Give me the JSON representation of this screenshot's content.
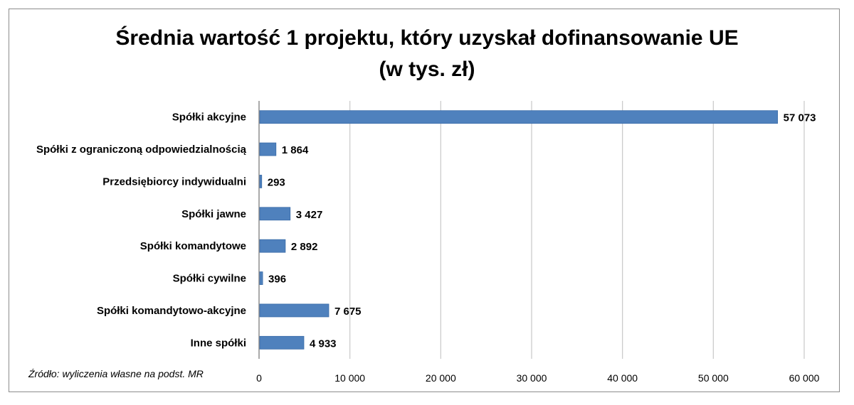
{
  "chart_data": {
    "type": "bar",
    "orientation": "horizontal",
    "title": "Średnia wartość 1 projektu, który uzyskał dofinansowanie UE",
    "subtitle": "(w tys. zł)",
    "categories": [
      "Spółki akcyjne",
      "Spółki z ograniczoną odpowiedzialnością",
      "Przedsiębiorcy indywidualni",
      "Spółki jawne",
      "Spółki komandytowe",
      "Spółki cywilne",
      "Spółki komandytowo-akcyjne",
      "Inne spółki"
    ],
    "values": [
      57073,
      1864,
      293,
      3427,
      2892,
      396,
      7675,
      4933
    ],
    "value_labels": [
      "57 073",
      "1 864",
      "293",
      "3 427",
      "2 892",
      "396",
      "7 675",
      "4 933"
    ],
    "xlim": [
      0,
      60000
    ],
    "xticks": [
      0,
      10000,
      20000,
      30000,
      40000,
      50000,
      60000
    ],
    "xtick_labels": [
      "0",
      "10 000",
      "20 000",
      "30 000",
      "40 000",
      "50 000",
      "60 000"
    ],
    "xlabel": "",
    "ylabel": "",
    "grid": "vertical",
    "legend": "none",
    "bar_color": "#4f81bd",
    "source": "Źródło: wyliczenia własne na podst. MR"
  }
}
